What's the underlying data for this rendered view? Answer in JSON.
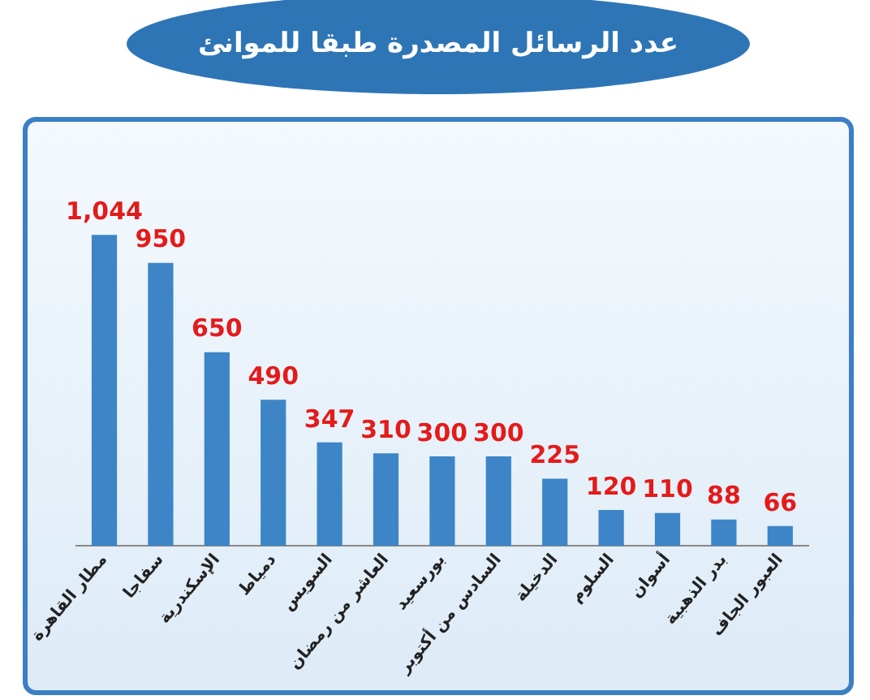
{
  "chart_data": {
    "type": "bar",
    "title": "عدد الرسائل المصدرة طبقا للموانئ",
    "categories": [
      "مطار القاهرة",
      "سفاجا",
      "الإسكندرية",
      "دمياط",
      "السويس",
      "العاشر من رمضان",
      "بورسعيد",
      "السادس من أكتوبر",
      "الدخيلة",
      "السلوم",
      "أسوان",
      "بدر الذهبية",
      "العبور الجاف"
    ],
    "values": [
      1044,
      950,
      650,
      490,
      347,
      310,
      300,
      300,
      225,
      120,
      110,
      88,
      66
    ],
    "value_labels": [
      "1,044",
      "950",
      "650",
      "490",
      "347",
      "310",
      "300",
      "300",
      "225",
      "120",
      "110",
      "88",
      "66"
    ],
    "color": "#3d85c6",
    "grid": false,
    "legend": false
  }
}
